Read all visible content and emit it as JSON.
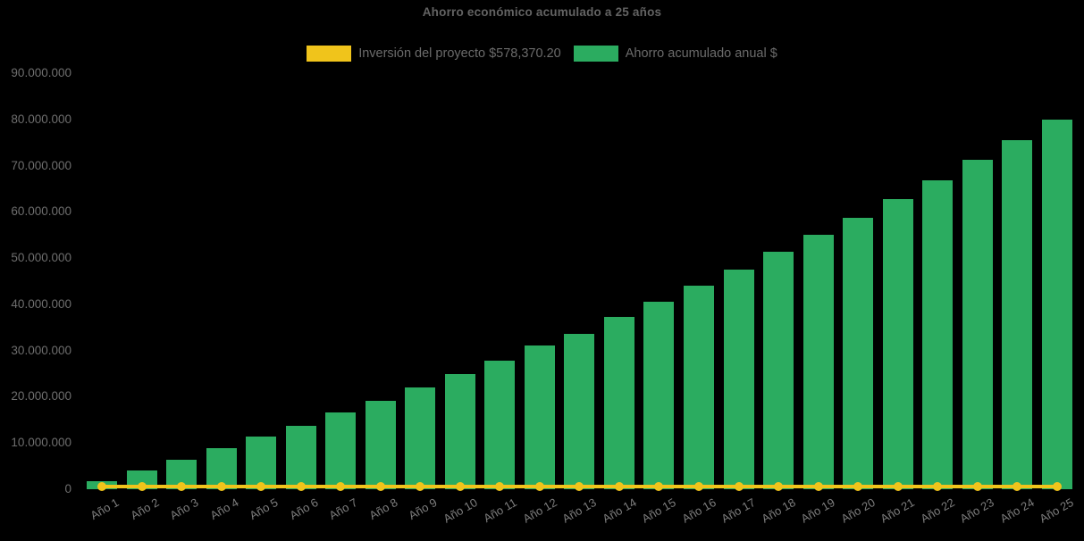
{
  "title": "Ahorro económico acumulado a 25 años",
  "colors": {
    "background": "#000000",
    "investment_yellow": "#F0C41B",
    "savings_green": "#2BAC60",
    "title_text": "#636363",
    "axis_text": "#6E6E6E"
  },
  "legend": {
    "items": [
      {
        "label": "Inversión del proyecto $578,370.20",
        "color": "#F0C41B",
        "swatch": "investment-swatch"
      },
      {
        "label": "Ahorro acumulado anual $",
        "color": "#2BAC60",
        "swatch": "savings-swatch"
      }
    ]
  },
  "chart_data": {
    "type": "bar",
    "title": "Ahorro económico acumulado a 25 años",
    "categories": [
      "Año 1",
      "Año 2",
      "Año 3",
      "Año 4",
      "Año 5",
      "Año 6",
      "Año 7",
      "Año 8",
      "Año 9",
      "Año 10",
      "Año 11",
      "Año 12",
      "Año 13",
      "Año 14",
      "Año 15",
      "Año 16",
      "Año 17",
      "Año 18",
      "Año 19",
      "Año 20",
      "Año 21",
      "Año 22",
      "Año 23",
      "Año 24",
      "Año 25"
    ],
    "series": [
      {
        "name": "Ahorro acumulado anual $",
        "type": "bar",
        "color": "#2BAC60",
        "values": [
          1700000,
          4000000,
          6400000,
          8800000,
          11400000,
          13700000,
          16600000,
          19100000,
          22000000,
          24900000,
          27800000,
          31100000,
          33700000,
          37200000,
          40600000,
          44000000,
          47500000,
          51300000,
          55000000,
          58700000,
          62700000,
          66800000,
          71200000,
          75500000,
          80000000
        ]
      },
      {
        "name": "Inversión del proyecto",
        "type": "line",
        "color": "#F0C41B",
        "constant_value": 578370.2,
        "marker": "circle"
      }
    ],
    "xlabel": "",
    "ylabel": "",
    "ylim": [
      0,
      90000000
    ],
    "ytick_step": 10000000,
    "ytick_labels": [
      "0",
      "10.000.000",
      "20.000.000",
      "30.000.000",
      "40.000.000",
      "50.000.000",
      "60.000.000",
      "70.000.000",
      "80.000.000",
      "90.000.000"
    ],
    "grid": false,
    "legend_position": "top"
  }
}
